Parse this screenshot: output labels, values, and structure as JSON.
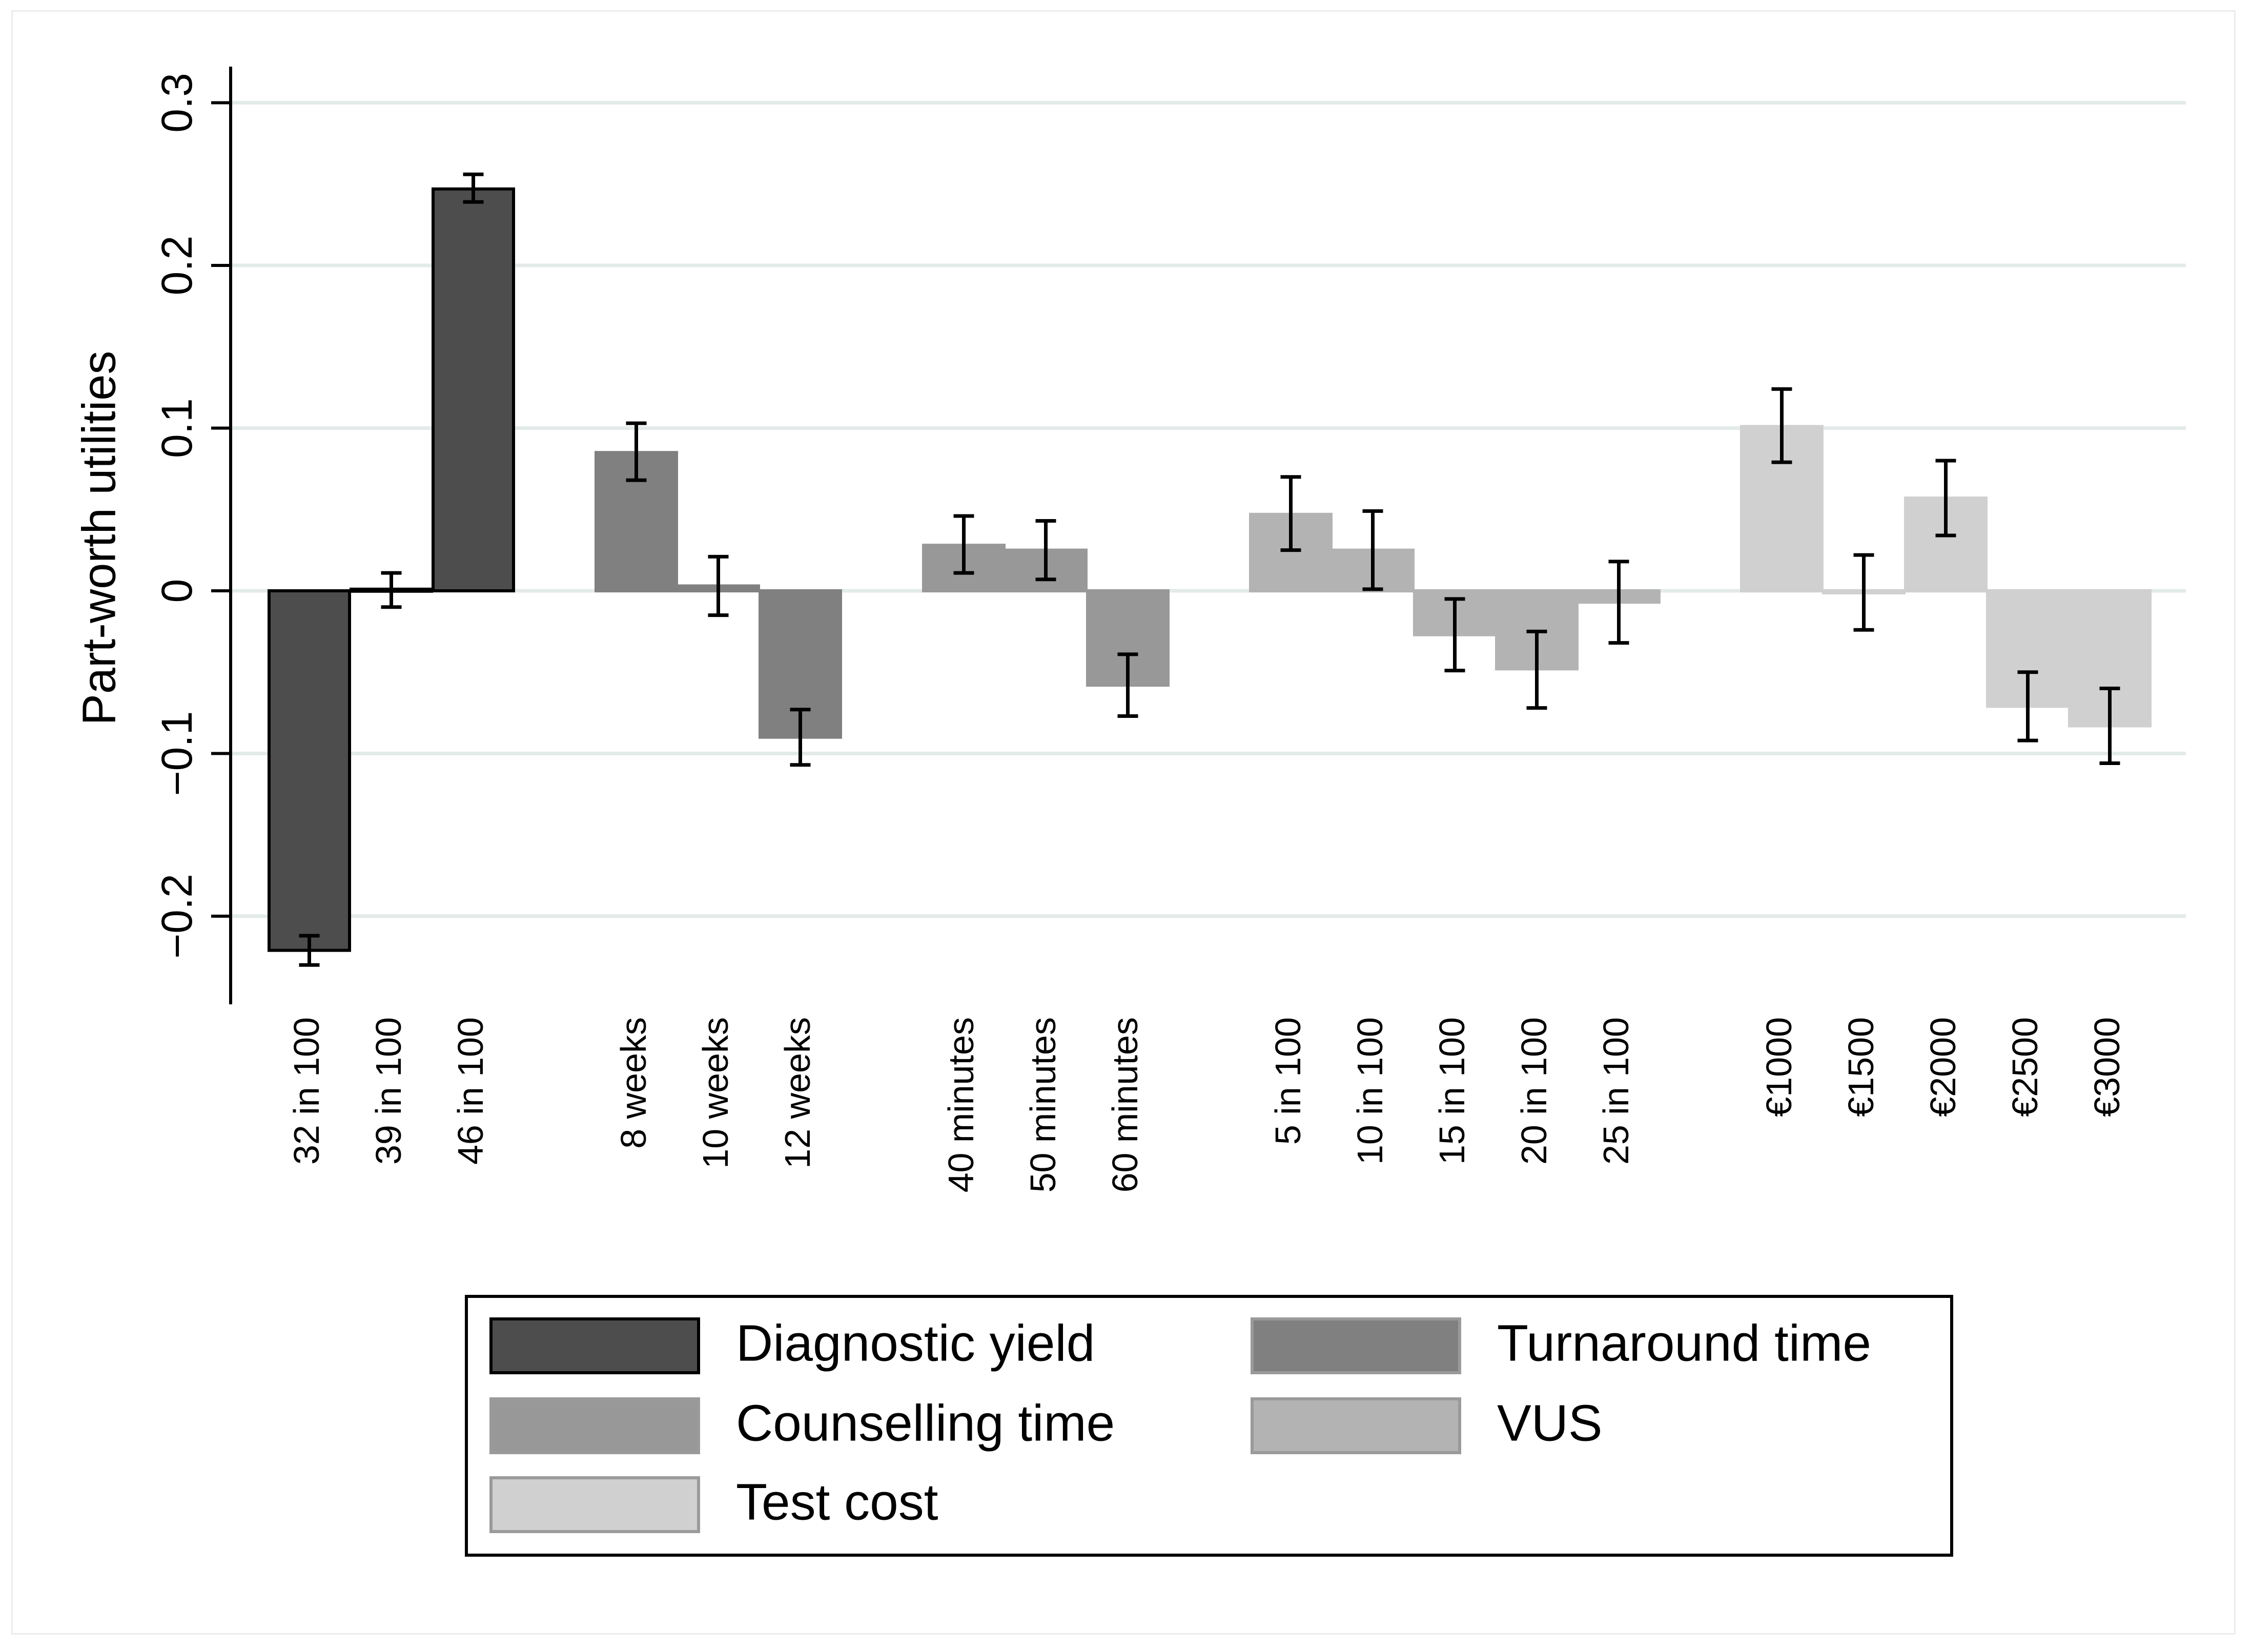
{
  "chart_data": {
    "type": "bar",
    "ylabel": "Part-worth utilities",
    "xlabel": "",
    "ylim": [
      -0.25,
      0.3
    ],
    "yticks": [
      -0.2,
      -0.1,
      0,
      0.1,
      0.2,
      0.3
    ],
    "ytick_labels": [
      "−0.2",
      "−0.1",
      "0",
      "0.1",
      "0.2",
      "0.3"
    ],
    "grid": true,
    "legend_position": "bottom",
    "groups": [
      {
        "name": "Diagnostic yield",
        "color": "#4d4d4d",
        "categories": [
          "32 in 100",
          "39 in 100",
          "46 in 100"
        ],
        "values": [
          -0.221,
          0.001,
          0.247
        ],
        "ci_low": [
          -0.23,
          -0.01,
          0.239
        ],
        "ci_high": [
          -0.212,
          0.011,
          0.256
        ]
      },
      {
        "name": "Turnaround time",
        "color": "#808080",
        "categories": [
          "8 weeks",
          "10 weeks",
          "12 weeks"
        ],
        "values": [
          0.085,
          0.003,
          -0.09
        ],
        "ci_low": [
          0.068,
          -0.015,
          -0.107
        ],
        "ci_high": [
          0.103,
          0.021,
          -0.073
        ]
      },
      {
        "name": "Counselling time",
        "color": "#989898",
        "categories": [
          "40 minutes",
          "50 minutes",
          "60 minutes"
        ],
        "values": [
          0.028,
          0.025,
          -0.058
        ],
        "ci_low": [
          0.011,
          0.007,
          -0.077
        ],
        "ci_high": [
          0.046,
          0.043,
          -0.039
        ]
      },
      {
        "name": "VUS",
        "color": "#b3b3b3",
        "categories": [
          "5 in 100",
          "10 in 100",
          "15 in 100",
          "20 in 100",
          "25 in 100"
        ],
        "values": [
          0.047,
          0.025,
          -0.027,
          -0.048,
          -0.007
        ],
        "ci_low": [
          0.025,
          0.001,
          -0.049,
          -0.072,
          -0.032
        ],
        "ci_high": [
          0.07,
          0.049,
          -0.005,
          -0.025,
          0.018
        ]
      },
      {
        "name": "Test cost",
        "color": "#d0d0d0",
        "categories": [
          "€1000",
          "€1500",
          "€2000",
          "€2500",
          "€3000"
        ],
        "values": [
          0.101,
          -0.001,
          0.057,
          -0.071,
          -0.083
        ],
        "ci_low": [
          0.079,
          -0.024,
          0.034,
          -0.092,
          -0.106
        ],
        "ci_high": [
          0.124,
          0.022,
          0.08,
          -0.05,
          -0.06
        ]
      }
    ],
    "legend": [
      "Diagnostic yield",
      "Turnaround time",
      "Counselling time",
      "VUS",
      "Test cost"
    ]
  }
}
